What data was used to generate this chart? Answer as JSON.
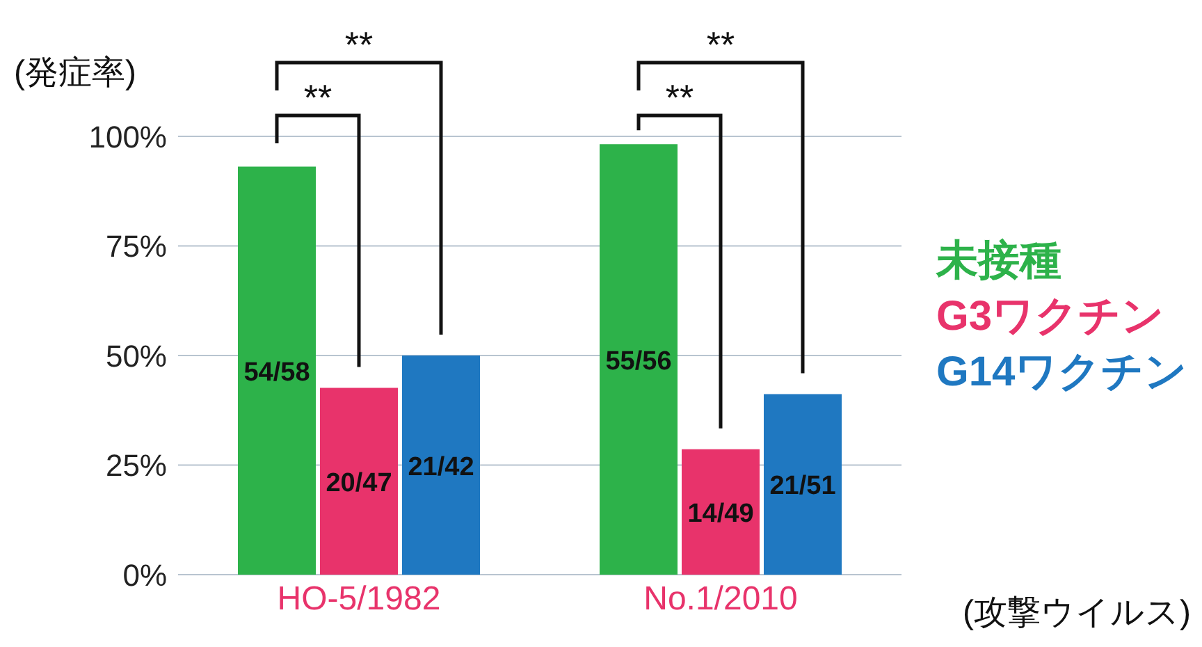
{
  "chart_data": {
    "type": "bar",
    "xlabel": "(攻撃ウイルス)",
    "ylabel": "(発症率)",
    "categories": [
      "HO-5/1982",
      "No.1/2010"
    ],
    "series": [
      {
        "name": "未接種",
        "color": "#2db24a",
        "values": [
          93.1,
          98.2
        ],
        "value_labels": [
          "54/58",
          "55/56"
        ]
      },
      {
        "name": "G3ワクチン",
        "color": "#e8336b",
        "values": [
          42.6,
          28.6
        ],
        "value_labels": [
          "20/47",
          "14/49"
        ]
      },
      {
        "name": "G14ワクチン",
        "color": "#1f78c1",
        "values": [
          50,
          41.2
        ],
        "value_labels": [
          "21/42",
          "21/51"
        ]
      }
    ],
    "ylim": [
      0,
      100
    ],
    "yticks": [
      {
        "value": 0,
        "label": "0%"
      },
      {
        "value": 25,
        "label": "25%"
      },
      {
        "value": 50,
        "label": "50%"
      },
      {
        "value": 75,
        "label": "75%"
      },
      {
        "value": 100,
        "label": "100%"
      }
    ],
    "grid": "y",
    "legend": "right",
    "annotations": [
      "**",
      "**",
      "**",
      "**"
    ]
  }
}
